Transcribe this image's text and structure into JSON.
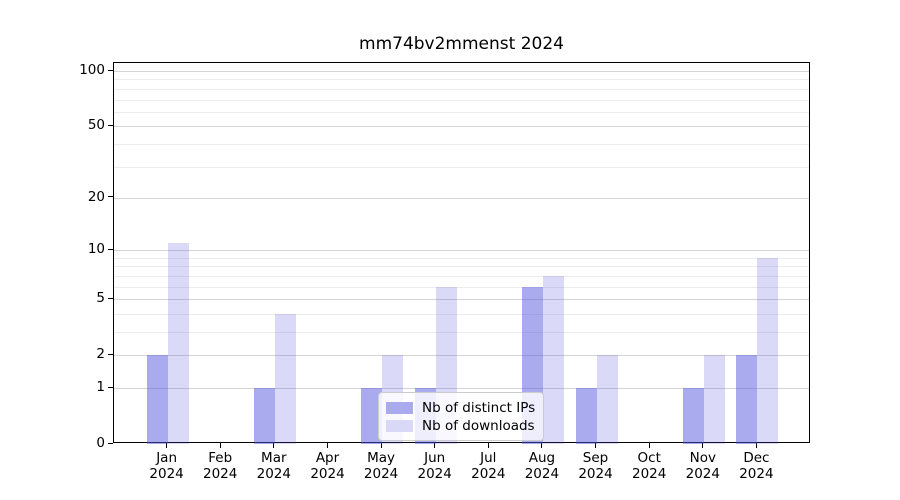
{
  "title": "mm74bv2mmenst 2024",
  "chart_data": {
    "type": "bar",
    "title": "mm74bv2mmenst 2024",
    "categories": [
      "Jan",
      "Feb",
      "Mar",
      "Apr",
      "May",
      "Jun",
      "Jul",
      "Aug",
      "Sep",
      "Oct",
      "Nov",
      "Dec"
    ],
    "tick_year": "2024",
    "series": [
      {
        "name": "Nb of distinct IPs",
        "legend_color": "#aaaaee",
        "fill": "rgba(85,85,221,0.50)",
        "values": [
          2,
          0,
          1,
          0,
          1,
          1,
          0,
          6,
          1,
          0,
          1,
          2
        ]
      },
      {
        "name": "Nb of downloads",
        "legend_color": "#d9d9f7",
        "fill": "rgba(85,85,221,0.22)",
        "values": [
          11,
          0,
          4,
          0,
          2,
          6,
          0,
          7,
          2,
          0,
          2,
          9
        ]
      }
    ],
    "yscale": "log1p",
    "ylim": [
      0,
      110.5
    ],
    "y_major_ticks": [
      0,
      1,
      2,
      5,
      10,
      20,
      50,
      100
    ],
    "y_minor_ticks": [
      3,
      4,
      6,
      7,
      8,
      9,
      30,
      40,
      60,
      70,
      80,
      90
    ],
    "grid": true,
    "legend_position": "lower center",
    "xlabel": "",
    "ylabel": ""
  },
  "colors": {
    "grid_major": "#d4d4d4",
    "grid_minor": "#ececec",
    "spine": "#000000",
    "background": "#ffffff"
  }
}
